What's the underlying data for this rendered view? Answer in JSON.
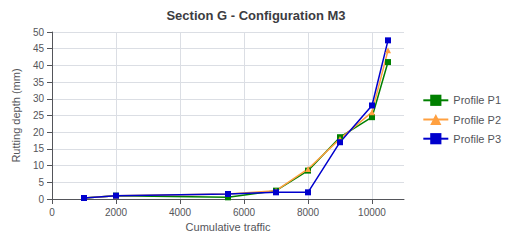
{
  "chart_data": {
    "type": "line",
    "title": "Section G - Configuration M3",
    "x_label": "Cumulative traffic",
    "y_label": "Rutting depth (mm)",
    "x": [
      1000,
      2000,
      5500,
      7000,
      8000,
      9000,
      10000,
      10500
    ],
    "series": [
      {
        "name": "Profile P1",
        "color": "#008000",
        "marker": "square",
        "values": [
          0.3,
          1.0,
          0.5,
          2.5,
          8.5,
          18.5,
          24.5,
          41.0
        ]
      },
      {
        "name": "Profile P2",
        "color": "#FFA040",
        "marker": "triangle",
        "values": [
          0.3,
          1.0,
          1.5,
          2.5,
          9.0,
          18.0,
          26.0,
          44.5
        ]
      },
      {
        "name": "Profile P3",
        "color": "#0000CD",
        "marker": "square",
        "values": [
          0.3,
          1.0,
          1.5,
          2.0,
          2.0,
          17.0,
          28.0,
          47.5
        ]
      }
    ],
    "xlim": [
      0,
      11000
    ],
    "ylim": [
      0,
      50
    ],
    "xticks": [
      0,
      2000,
      4000,
      6000,
      8000,
      10000
    ],
    "yticks": [
      0,
      5,
      10,
      15,
      20,
      25,
      30,
      35,
      40,
      45,
      50
    ],
    "grid": true,
    "legend": "right"
  }
}
